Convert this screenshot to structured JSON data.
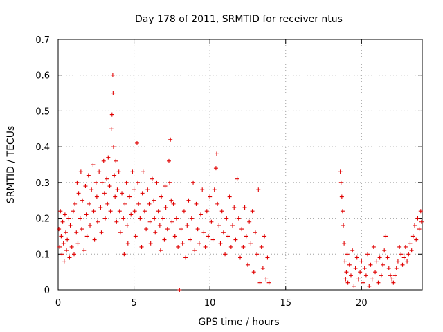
{
  "chart_data": {
    "type": "scatter",
    "title": "Day 178 of 2011, SRMTID for receiver ntus",
    "xlabel": "GPS time / hours",
    "ylabel": "SRMTID / TECUs",
    "xlim": [
      0,
      24
    ],
    "ylim": [
      0,
      0.7
    ],
    "xticks": [
      0,
      5,
      10,
      15,
      20
    ],
    "xtick_labels": [
      "0",
      "5",
      "10",
      "15",
      "20"
    ],
    "yticks": [
      0,
      0.1,
      0.2,
      0.3,
      0.4,
      0.5,
      0.6,
      0.7
    ],
    "ytick_labels": [
      "0",
      "0.1",
      "0.2",
      "0.3",
      "0.4",
      "0.5",
      "0.6",
      "0.7"
    ],
    "grid": true,
    "marker": "+",
    "marker_color": "#e00000",
    "series": [
      {
        "name": "SRMTID",
        "points": [
          [
            0.05,
            0.17
          ],
          [
            0.1,
            0.12
          ],
          [
            0.15,
            0.22
          ],
          [
            0.2,
            0.15
          ],
          [
            0.25,
            0.1
          ],
          [
            0.3,
            0.19
          ],
          [
            0.35,
            0.13
          ],
          [
            0.4,
            0.08
          ],
          [
            0.45,
            0.21
          ],
          [
            0.5,
            0.16
          ],
          [
            0.55,
            0.11
          ],
          [
            0.6,
            0.14
          ],
          [
            0.7,
            0.2
          ],
          [
            0.75,
            0.09
          ],
          [
            0.8,
            0.18
          ],
          [
            0.9,
            0.12
          ],
          [
            1.0,
            0.22
          ],
          [
            1.05,
            0.1
          ],
          [
            1.1,
            0.24
          ],
          [
            1.2,
            0.16
          ],
          [
            1.25,
            0.3
          ],
          [
            1.3,
            0.13
          ],
          [
            1.35,
            0.27
          ],
          [
            1.45,
            0.2
          ],
          [
            1.5,
            0.33
          ],
          [
            1.55,
            0.17
          ],
          [
            1.6,
            0.25
          ],
          [
            1.7,
            0.11
          ],
          [
            1.8,
            0.29
          ],
          [
            1.85,
            0.21
          ],
          [
            1.9,
            0.15
          ],
          [
            2.0,
            0.32
          ],
          [
            2.05,
            0.24
          ],
          [
            2.1,
            0.18
          ],
          [
            2.2,
            0.28
          ],
          [
            2.3,
            0.35
          ],
          [
            2.35,
            0.22
          ],
          [
            2.4,
            0.14
          ],
          [
            2.5,
            0.3
          ],
          [
            2.55,
            0.26
          ],
          [
            2.6,
            0.19
          ],
          [
            2.7,
            0.33
          ],
          [
            2.8,
            0.23
          ],
          [
            2.85,
            0.16
          ],
          [
            2.9,
            0.3
          ],
          [
            3.0,
            0.36
          ],
          [
            3.05,
            0.27
          ],
          [
            3.1,
            0.2
          ],
          [
            3.2,
            0.31
          ],
          [
            3.25,
            0.24
          ],
          [
            3.3,
            0.37
          ],
          [
            3.4,
            0.29
          ],
          [
            3.45,
            0.22
          ],
          [
            3.5,
            0.45
          ],
          [
            3.55,
            0.49
          ],
          [
            3.6,
            0.6
          ],
          [
            3.62,
            0.55
          ],
          [
            3.65,
            0.4
          ],
          [
            3.7,
            0.32
          ],
          [
            3.75,
            0.26
          ],
          [
            3.8,
            0.36
          ],
          [
            3.85,
            0.19
          ],
          [
            3.9,
            0.28
          ],
          [
            4.0,
            0.33
          ],
          [
            4.05,
            0.22
          ],
          [
            4.1,
            0.16
          ],
          [
            4.2,
            0.27
          ],
          [
            4.3,
            0.2
          ],
          [
            4.35,
            0.1
          ],
          [
            4.4,
            0.24
          ],
          [
            4.5,
            0.3
          ],
          [
            4.55,
            0.18
          ],
          [
            4.6,
            0.13
          ],
          [
            4.7,
            0.26
          ],
          [
            4.8,
            0.21
          ],
          [
            4.9,
            0.33
          ],
          [
            5.0,
            0.28
          ],
          [
            5.05,
            0.22
          ],
          [
            5.1,
            0.15
          ],
          [
            5.2,
            0.41
          ],
          [
            5.25,
            0.3
          ],
          [
            5.3,
            0.24
          ],
          [
            5.4,
            0.2
          ],
          [
            5.5,
            0.12
          ],
          [
            5.55,
            0.27
          ],
          [
            5.6,
            0.33
          ],
          [
            5.7,
            0.22
          ],
          [
            5.8,
            0.17
          ],
          [
            5.9,
            0.28
          ],
          [
            6.0,
            0.24
          ],
          [
            6.05,
            0.19
          ],
          [
            6.1,
            0.13
          ],
          [
            6.2,
            0.31
          ],
          [
            6.3,
            0.25
          ],
          [
            6.35,
            0.2
          ],
          [
            6.4,
            0.16
          ],
          [
            6.5,
            0.3
          ],
          [
            6.6,
            0.22
          ],
          [
            6.7,
            0.18
          ],
          [
            6.75,
            0.11
          ],
          [
            6.8,
            0.26
          ],
          [
            6.9,
            0.2
          ],
          [
            7.0,
            0.14
          ],
          [
            7.05,
            0.29
          ],
          [
            7.1,
            0.23
          ],
          [
            7.2,
            0.17
          ],
          [
            7.3,
            0.36
          ],
          [
            7.35,
            0.3
          ],
          [
            7.4,
            0.42
          ],
          [
            7.45,
            0.25
          ],
          [
            7.5,
            0.19
          ],
          [
            7.6,
            0.24
          ],
          [
            7.7,
            0.15
          ],
          [
            7.8,
            0.2
          ],
          [
            7.9,
            0.12
          ],
          [
            8.0,
            0.0
          ],
          [
            8.1,
            0.17
          ],
          [
            8.2,
            0.13
          ],
          [
            8.3,
            0.22
          ],
          [
            8.4,
            0.09
          ],
          [
            8.5,
            0.18
          ],
          [
            8.6,
            0.25
          ],
          [
            8.7,
            0.14
          ],
          [
            8.8,
            0.2
          ],
          [
            8.9,
            0.3
          ],
          [
            9.0,
            0.11
          ],
          [
            9.1,
            0.24
          ],
          [
            9.2,
            0.17
          ],
          [
            9.3,
            0.13
          ],
          [
            9.4,
            0.21
          ],
          [
            9.5,
            0.28
          ],
          [
            9.6,
            0.16
          ],
          [
            9.7,
            0.12
          ],
          [
            9.8,
            0.22
          ],
          [
            9.9,
            0.15
          ],
          [
            10.0,
            0.26
          ],
          [
            10.1,
            0.19
          ],
          [
            10.2,
            0.14
          ],
          [
            10.3,
            0.28
          ],
          [
            10.4,
            0.34
          ],
          [
            10.45,
            0.38
          ],
          [
            10.5,
            0.24
          ],
          [
            10.6,
            0.18
          ],
          [
            10.7,
            0.13
          ],
          [
            10.8,
            0.22
          ],
          [
            10.9,
            0.16
          ],
          [
            11.0,
            0.1
          ],
          [
            11.1,
            0.2
          ],
          [
            11.2,
            0.15
          ],
          [
            11.3,
            0.26
          ],
          [
            11.4,
            0.12
          ],
          [
            11.5,
            0.18
          ],
          [
            11.6,
            0.23
          ],
          [
            11.7,
            0.14
          ],
          [
            11.8,
            0.31
          ],
          [
            11.9,
            0.2
          ],
          [
            12.0,
            0.09
          ],
          [
            12.1,
            0.17
          ],
          [
            12.2,
            0.12
          ],
          [
            12.3,
            0.23
          ],
          [
            12.4,
            0.15
          ],
          [
            12.5,
            0.07
          ],
          [
            12.6,
            0.19
          ],
          [
            12.7,
            0.13
          ],
          [
            12.8,
            0.22
          ],
          [
            12.9,
            0.05
          ],
          [
            13.0,
            0.16
          ],
          [
            13.1,
            0.1
          ],
          [
            13.2,
            0.28
          ],
          [
            13.3,
            0.02
          ],
          [
            13.4,
            0.12
          ],
          [
            13.5,
            0.06
          ],
          [
            13.6,
            0.15
          ],
          [
            13.7,
            0.03
          ],
          [
            13.8,
            0.09
          ],
          [
            13.9,
            0.02
          ],
          [
            18.6,
            0.33
          ],
          [
            18.65,
            0.3
          ],
          [
            18.7,
            0.26
          ],
          [
            18.75,
            0.22
          ],
          [
            18.8,
            0.18
          ],
          [
            18.85,
            0.13
          ],
          [
            18.9,
            0.08
          ],
          [
            18.95,
            0.03
          ],
          [
            19.0,
            0.05
          ],
          [
            19.05,
            0.1
          ],
          [
            19.1,
            0.02
          ],
          [
            19.2,
            0.07
          ],
          [
            19.3,
            0.04
          ],
          [
            19.4,
            0.11
          ],
          [
            19.5,
            0.01
          ],
          [
            19.6,
            0.06
          ],
          [
            19.7,
            0.09
          ],
          [
            19.8,
            0.03
          ],
          [
            19.9,
            0.05
          ],
          [
            20.0,
            0.08
          ],
          [
            20.1,
            0.02
          ],
          [
            20.2,
            0.06
          ],
          [
            20.3,
            0.04
          ],
          [
            20.4,
            0.1
          ],
          [
            20.5,
            0.01
          ],
          [
            20.6,
            0.07
          ],
          [
            20.7,
            0.03
          ],
          [
            20.8,
            0.12
          ],
          [
            20.9,
            0.05
          ],
          [
            21.0,
            0.08
          ],
          [
            21.1,
            0.02
          ],
          [
            21.2,
            0.09
          ],
          [
            21.3,
            0.04
          ],
          [
            21.4,
            0.07
          ],
          [
            21.5,
            0.11
          ],
          [
            21.6,
            0.15
          ],
          [
            21.7,
            0.09
          ],
          [
            21.8,
            0.06
          ],
          [
            21.9,
            0.04
          ],
          [
            22.0,
            0.03
          ],
          [
            22.1,
            0.02
          ],
          [
            22.2,
            0.04
          ],
          [
            22.3,
            0.06
          ],
          [
            22.4,
            0.08
          ],
          [
            22.5,
            0.12
          ],
          [
            22.6,
            0.1
          ],
          [
            22.7,
            0.07
          ],
          [
            22.8,
            0.09
          ],
          [
            22.9,
            0.12
          ],
          [
            23.0,
            0.08
          ],
          [
            23.1,
            0.1
          ],
          [
            23.2,
            0.13
          ],
          [
            23.3,
            0.11
          ],
          [
            23.4,
            0.15
          ],
          [
            23.5,
            0.18
          ],
          [
            23.6,
            0.14
          ],
          [
            23.7,
            0.2
          ],
          [
            23.8,
            0.17
          ],
          [
            23.9,
            0.22
          ],
          [
            23.95,
            0.19
          ]
        ]
      }
    ]
  }
}
